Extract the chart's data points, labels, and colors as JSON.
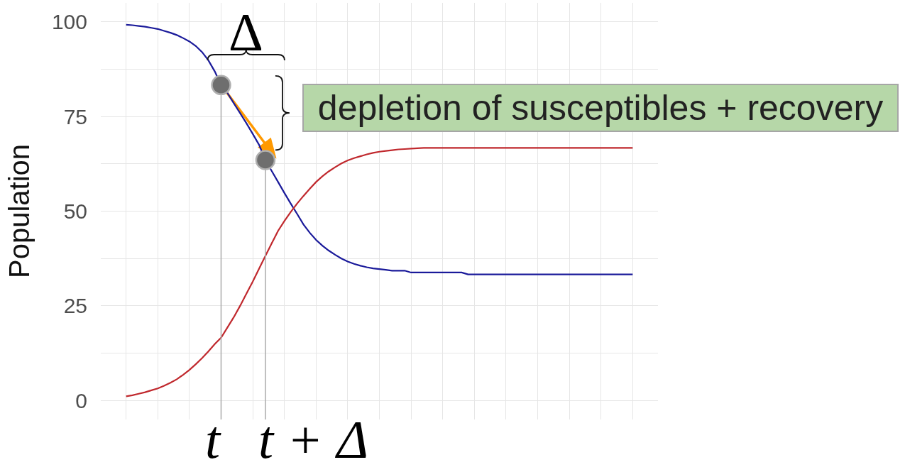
{
  "chart_data": {
    "type": "line",
    "categories": [
      null,
      null,
      null,
      null,
      null,
      null,
      null,
      null,
      null,
      null,
      null,
      null,
      null,
      null,
      null,
      null,
      null,
      null,
      null,
      null,
      null,
      null,
      null,
      null,
      null,
      null,
      null,
      null,
      null,
      null,
      null,
      null,
      null,
      null,
      null,
      null,
      null,
      null,
      null,
      null,
      null,
      null,
      null,
      null,
      null,
      null,
      null,
      null,
      null,
      null,
      null,
      null,
      null,
      null,
      null,
      null,
      null,
      null,
      null,
      null,
      null,
      null,
      null,
      null,
      null,
      null,
      null,
      null,
      null,
      null,
      null,
      null,
      null,
      null,
      null,
      null,
      null,
      null,
      null,
      null,
      null
    ],
    "series": [
      {
        "color": "#1a1a9a",
        "values": [
          99.2,
          99.1,
          98.9,
          98.7,
          98.4,
          98.1,
          97.6,
          97.1,
          96.5,
          95.7,
          94.8,
          93.6,
          92.0,
          89.8,
          86.9,
          83.3,
          81.2,
          78.5,
          75.9,
          73.2,
          70.4,
          67.5,
          63.5,
          60.6,
          57.7,
          54.8,
          52.0,
          49.3,
          46.5,
          44.3,
          42.4,
          40.9,
          39.6,
          38.5,
          37.5,
          36.7,
          36.1,
          35.6,
          35.2,
          34.9,
          34.7,
          34.5,
          34.3,
          34.3,
          34.3,
          33.8,
          33.8,
          33.8,
          33.8,
          33.8,
          33.8,
          33.8,
          33.8,
          33.8,
          33.3,
          33.3,
          33.3,
          33.3,
          33.3,
          33.3,
          33.3,
          33.3,
          33.3,
          33.3,
          33.3,
          33.3,
          33.3,
          33.3,
          33.3,
          33.3,
          33.3,
          33.3,
          33.3,
          33.3,
          33.3,
          33.3,
          33.3,
          33.3,
          33.3,
          33.3,
          33.3
        ]
      },
      {
        "color": "#c0282d",
        "values": [
          1.1,
          1.4,
          1.8,
          2.2,
          2.7,
          3.2,
          3.9,
          4.7,
          5.6,
          6.8,
          8.1,
          9.6,
          11.2,
          13.0,
          14.9,
          16.6,
          19.3,
          22.0,
          25.0,
          28.2,
          31.4,
          34.8,
          38.2,
          41.5,
          44.8,
          47.4,
          49.8,
          52.0,
          54.0,
          55.9,
          57.7,
          59.2,
          60.5,
          61.6,
          62.6,
          63.4,
          64.0,
          64.5,
          65.0,
          65.4,
          65.7,
          65.9,
          66.1,
          66.3,
          66.4,
          66.5,
          66.6,
          66.7,
          66.7,
          66.7,
          66.7,
          66.7,
          66.7,
          66.7,
          66.7,
          66.7,
          66.7,
          66.7,
          66.7,
          66.7,
          66.7,
          66.7,
          66.7,
          66.7,
          66.7,
          66.7,
          66.7,
          66.7,
          66.7,
          66.7,
          66.7,
          66.7,
          66.7,
          66.7,
          66.7,
          66.7,
          66.7,
          66.7,
          66.7,
          66.7,
          66.7
        ]
      },
      {
        "type": "lollipop",
        "color": "#6e6e6e",
        "marker": "circle",
        "values": [
          null,
          null,
          null,
          null,
          null,
          null,
          null,
          null,
          null,
          null,
          null,
          null,
          null,
          null,
          null,
          83.3,
          null,
          null,
          null,
          null,
          null,
          null,
          63.5,
          null,
          null,
          null,
          null,
          null,
          null,
          null,
          null,
          null,
          null,
          null,
          null,
          null,
          null,
          null,
          null,
          null,
          null,
          null,
          null,
          null,
          null,
          null,
          null,
          null,
          null,
          null,
          null,
          null,
          null,
          null,
          null,
          null,
          null,
          null,
          null,
          null,
          null,
          null,
          null,
          null,
          null,
          null,
          null,
          null,
          null,
          null,
          null,
          null,
          null,
          null,
          null,
          null,
          null,
          null,
          null,
          null,
          null
        ]
      }
    ],
    "ylabel": "Population",
    "ylim": [
      -5,
      105
    ],
    "yticks": [
      0,
      25,
      50,
      75,
      100
    ],
    "grid": true,
    "annotations": [
      "Δ",
      "depletion of susceptibles + recovery",
      "t",
      "t + Δ"
    ]
  }
}
